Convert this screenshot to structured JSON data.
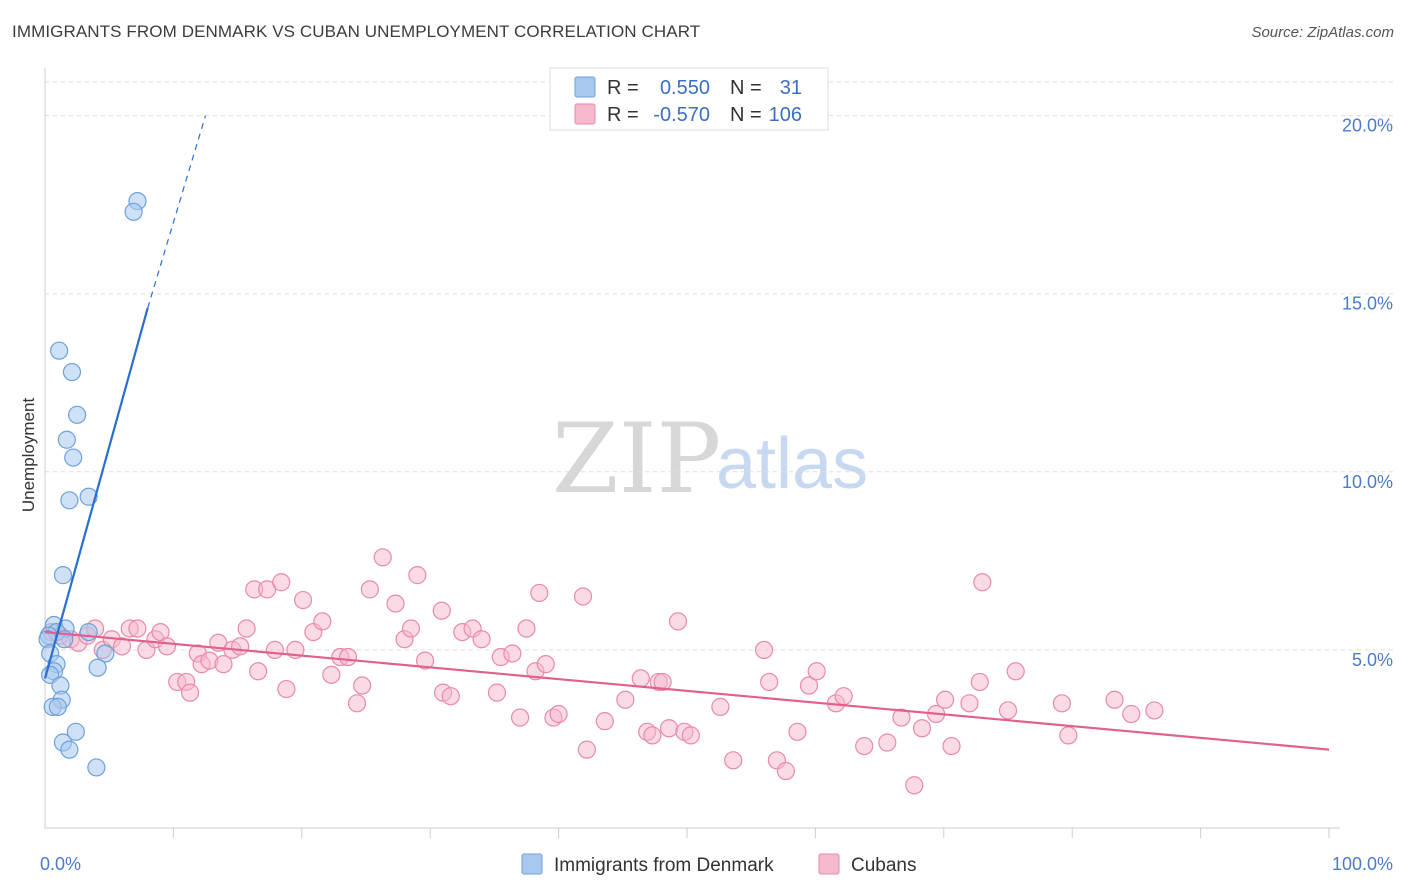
{
  "header": {
    "title": "IMMIGRANTS FROM DENMARK VS CUBAN UNEMPLOYMENT CORRELATION CHART",
    "source": "Source: ZipAtlas.com"
  },
  "watermark": {
    "zip": "ZIP",
    "atlas": "atlas"
  },
  "colors": {
    "blue_fill": "#a8c8f0",
    "blue_stroke": "#6fa0dc",
    "blue_line": "#2a6fcf",
    "pink_fill": "#f6b8cc",
    "pink_stroke": "#e98aa8",
    "pink_line": "#e0608e",
    "tick_text": "#4a7cc7",
    "grid": "#dddddd"
  },
  "legend_box": {
    "rows": [
      {
        "r_label": "R =",
        "r_value": "0.550",
        "n_label": "N =",
        "n_value": "31"
      },
      {
        "r_label": "R =",
        "r_value": "-0.570",
        "n_label": "N =",
        "n_value": "106"
      }
    ]
  },
  "chart_data": {
    "type": "scatter",
    "title": "IMMIGRANTS FROM DENMARK VS CUBAN UNEMPLOYMENT CORRELATION CHART",
    "xlabel": "",
    "ylabel": "Unemployment",
    "xlim": [
      0,
      100
    ],
    "ylim": [
      0,
      21
    ],
    "x_tick_labels": [
      "0.0%",
      "100.0%"
    ],
    "y_ticks": [
      5,
      10,
      15,
      20
    ],
    "y_tick_labels": [
      "5.0%",
      "10.0%",
      "15.0%",
      "20.0%"
    ],
    "legend": [
      "Immigrants from Denmark",
      "Cubans"
    ],
    "series": [
      {
        "name": "Immigrants from Denmark",
        "r": 0.55,
        "n": 31,
        "trend": {
          "x0": 0,
          "y0": 4.2,
          "x1": 8.0,
          "y1": 14.6,
          "dash_x1": 12.5,
          "dash_y1": 20.0
        },
        "points": [
          [
            7.2,
            17.6
          ],
          [
            6.9,
            17.3
          ],
          [
            1.1,
            13.4
          ],
          [
            2.1,
            12.8
          ],
          [
            2.5,
            11.6
          ],
          [
            1.7,
            10.9
          ],
          [
            2.2,
            10.4
          ],
          [
            1.9,
            9.2
          ],
          [
            3.4,
            9.3
          ],
          [
            1.4,
            7.1
          ],
          [
            0.7,
            5.7
          ],
          [
            1.6,
            5.6
          ],
          [
            0.9,
            5.5
          ],
          [
            3.4,
            5.5
          ],
          [
            0.3,
            5.4
          ],
          [
            0.2,
            5.3
          ],
          [
            1.5,
            5.3
          ],
          [
            4.7,
            4.9
          ],
          [
            0.4,
            4.9
          ],
          [
            0.9,
            4.6
          ],
          [
            4.1,
            4.5
          ],
          [
            0.7,
            4.4
          ],
          [
            0.4,
            4.3
          ],
          [
            1.2,
            4.0
          ],
          [
            1.3,
            3.6
          ],
          [
            0.6,
            3.4
          ],
          [
            1.0,
            3.4
          ],
          [
            2.4,
            2.7
          ],
          [
            1.4,
            2.4
          ],
          [
            1.9,
            2.2
          ],
          [
            4.0,
            1.7
          ]
        ]
      },
      {
        "name": "Cubans",
        "r": -0.57,
        "n": 106,
        "trend": {
          "x0": 0,
          "y0": 5.5,
          "x1": 100,
          "y1": 2.2
        },
        "points": [
          [
            0.5,
            5.5
          ],
          [
            1.2,
            5.4
          ],
          [
            2.0,
            5.3
          ],
          [
            2.6,
            5.2
          ],
          [
            3.3,
            5.4
          ],
          [
            3.9,
            5.6
          ],
          [
            4.5,
            5.0
          ],
          [
            5.2,
            5.3
          ],
          [
            6.0,
            5.1
          ],
          [
            6.6,
            5.6
          ],
          [
            7.2,
            5.6
          ],
          [
            7.9,
            5.0
          ],
          [
            8.6,
            5.3
          ],
          [
            9.0,
            5.5
          ],
          [
            9.5,
            5.1
          ],
          [
            10.3,
            4.1
          ],
          [
            11.0,
            4.1
          ],
          [
            11.3,
            3.8
          ],
          [
            11.9,
            4.9
          ],
          [
            12.2,
            4.6
          ],
          [
            12.8,
            4.7
          ],
          [
            13.5,
            5.2
          ],
          [
            13.9,
            4.6
          ],
          [
            14.6,
            5.0
          ],
          [
            15.2,
            5.1
          ],
          [
            15.7,
            5.6
          ],
          [
            16.3,
            6.7
          ],
          [
            16.6,
            4.4
          ],
          [
            17.3,
            6.7
          ],
          [
            17.9,
            5.0
          ],
          [
            18.4,
            6.9
          ],
          [
            18.8,
            3.9
          ],
          [
            19.5,
            5.0
          ],
          [
            20.1,
            6.4
          ],
          [
            20.9,
            5.5
          ],
          [
            21.6,
            5.8
          ],
          [
            22.3,
            4.3
          ],
          [
            23.0,
            4.8
          ],
          [
            23.6,
            4.8
          ],
          [
            24.3,
            3.5
          ],
          [
            24.7,
            4.0
          ],
          [
            25.3,
            6.7
          ],
          [
            26.3,
            7.6
          ],
          [
            27.3,
            6.3
          ],
          [
            28.0,
            5.3
          ],
          [
            28.5,
            5.6
          ],
          [
            29.0,
            7.1
          ],
          [
            29.6,
            4.7
          ],
          [
            30.9,
            6.1
          ],
          [
            31.0,
            3.8
          ],
          [
            31.6,
            3.7
          ],
          [
            32.5,
            5.5
          ],
          [
            33.3,
            5.6
          ],
          [
            34.0,
            5.3
          ],
          [
            35.2,
            3.8
          ],
          [
            35.5,
            4.8
          ],
          [
            36.4,
            4.9
          ],
          [
            37.0,
            3.1
          ],
          [
            37.5,
            5.6
          ],
          [
            38.2,
            4.4
          ],
          [
            38.5,
            6.6
          ],
          [
            39.0,
            4.6
          ],
          [
            39.6,
            3.1
          ],
          [
            40.0,
            3.2
          ],
          [
            41.9,
            6.5
          ],
          [
            42.2,
            2.2
          ],
          [
            43.6,
            3.0
          ],
          [
            45.2,
            3.6
          ],
          [
            46.4,
            4.2
          ],
          [
            46.9,
            2.7
          ],
          [
            47.3,
            2.6
          ],
          [
            47.8,
            4.1
          ],
          [
            48.1,
            4.1
          ],
          [
            48.6,
            2.8
          ],
          [
            49.3,
            5.8
          ],
          [
            49.8,
            2.7
          ],
          [
            50.3,
            2.6
          ],
          [
            52.6,
            3.4
          ],
          [
            53.6,
            1.9
          ],
          [
            56.0,
            5.0
          ],
          [
            56.4,
            4.1
          ],
          [
            57.0,
            1.9
          ],
          [
            57.7,
            1.6
          ],
          [
            58.6,
            2.7
          ],
          [
            59.5,
            4.0
          ],
          [
            60.1,
            4.4
          ],
          [
            61.6,
            3.5
          ],
          [
            62.2,
            3.7
          ],
          [
            63.8,
            2.3
          ],
          [
            65.6,
            2.4
          ],
          [
            66.7,
            3.1
          ],
          [
            67.7,
            1.2
          ],
          [
            68.3,
            2.8
          ],
          [
            69.4,
            3.2
          ],
          [
            70.1,
            3.6
          ],
          [
            70.6,
            2.3
          ],
          [
            72.0,
            3.5
          ],
          [
            72.8,
            4.1
          ],
          [
            73.0,
            6.9
          ],
          [
            75.0,
            3.3
          ],
          [
            75.6,
            4.4
          ],
          [
            79.2,
            3.5
          ],
          [
            79.7,
            2.6
          ],
          [
            83.3,
            3.6
          ],
          [
            84.6,
            3.2
          ],
          [
            86.4,
            3.3
          ]
        ]
      }
    ]
  }
}
